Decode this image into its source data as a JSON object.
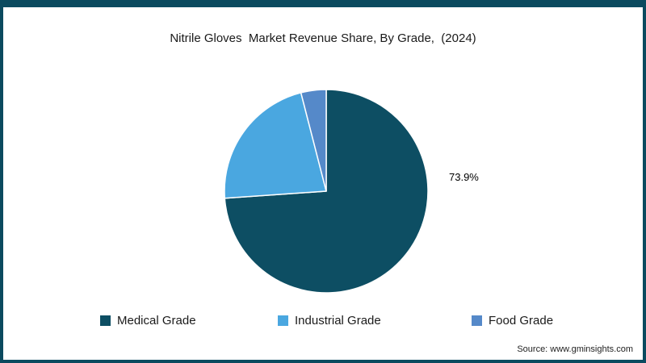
{
  "frame": {
    "border_color": "#0b4a5f",
    "background": "#ffffff"
  },
  "chart_data": {
    "type": "pie",
    "title": "Nitrile Gloves  Market Revenue Share, By Grade,  (2024)",
    "slices": [
      {
        "label": "Medical Grade",
        "value": 73.9,
        "color": "#0d4e63",
        "data_label": "73.9%"
      },
      {
        "label": "Industrial Grade",
        "value": 22.1,
        "color": "#4aa7e0",
        "data_label": ""
      },
      {
        "label": "Food Grade",
        "value": 4.0,
        "color": "#5589c9",
        "data_label": ""
      }
    ],
    "start_angle_deg": 0,
    "direction": "clockwise",
    "legend_position": "bottom",
    "annotations": [
      "73.9%"
    ]
  },
  "source": "Source: www.gminsights.com"
}
